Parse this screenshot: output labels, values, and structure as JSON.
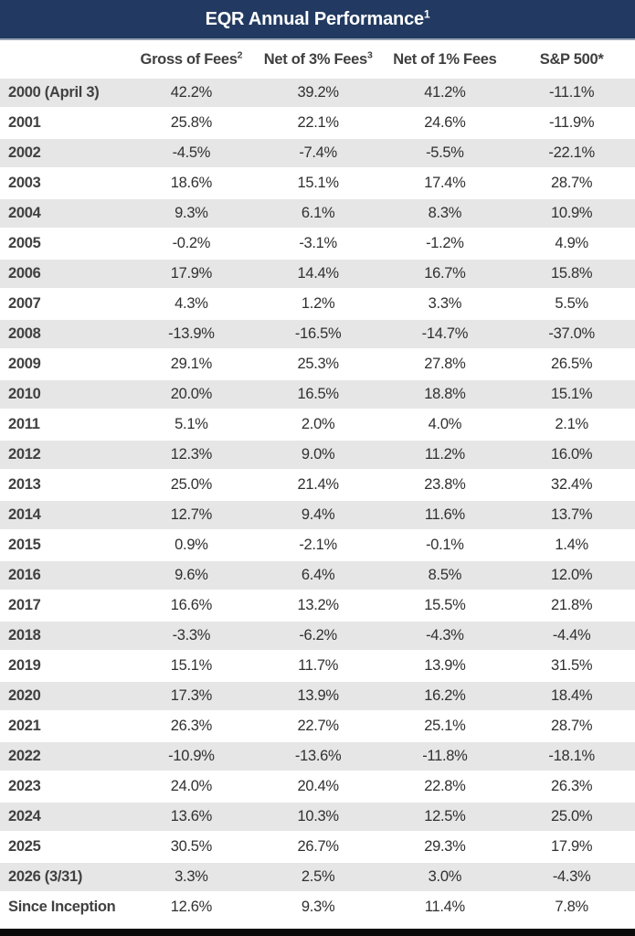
{
  "title": {
    "text": "EQR Annual Performance",
    "superscript": "1"
  },
  "colors": {
    "title_bar_bg": "#223a61",
    "title_text": "#ffffff",
    "row_alt_bg": "#e6e6e6",
    "header_text": "#3f3f3f",
    "body_text": "#303030",
    "bottom_bar": "#0a0a0a"
  },
  "chart_data": {
    "type": "table",
    "title": "EQR Annual Performance",
    "title_superscript": "1",
    "columns": [
      "",
      "Gross of Fees",
      "Net of 3% Fees",
      "Net of 1% Fees",
      "S&P 500*"
    ],
    "column_superscripts": [
      "",
      "2",
      "3",
      "",
      ""
    ],
    "rows": [
      {
        "label": "2000 (April 3)",
        "values": [
          "42.2%",
          "39.2%",
          "41.2%",
          "-11.1%"
        ]
      },
      {
        "label": "2001",
        "values": [
          "25.8%",
          "22.1%",
          "24.6%",
          "-11.9%"
        ]
      },
      {
        "label": "2002",
        "values": [
          "-4.5%",
          "-7.4%",
          "-5.5%",
          "-22.1%"
        ]
      },
      {
        "label": "2003",
        "values": [
          "18.6%",
          "15.1%",
          "17.4%",
          "28.7%"
        ]
      },
      {
        "label": "2004",
        "values": [
          "9.3%",
          "6.1%",
          "8.3%",
          "10.9%"
        ]
      },
      {
        "label": "2005",
        "values": [
          "-0.2%",
          "-3.1%",
          "-1.2%",
          "4.9%"
        ]
      },
      {
        "label": "2006",
        "values": [
          "17.9%",
          "14.4%",
          "16.7%",
          "15.8%"
        ]
      },
      {
        "label": "2007",
        "values": [
          "4.3%",
          "1.2%",
          "3.3%",
          "5.5%"
        ]
      },
      {
        "label": "2008",
        "values": [
          "-13.9%",
          "-16.5%",
          "-14.7%",
          "-37.0%"
        ]
      },
      {
        "label": "2009",
        "values": [
          "29.1%",
          "25.3%",
          "27.8%",
          "26.5%"
        ]
      },
      {
        "label": "2010",
        "values": [
          "20.0%",
          "16.5%",
          "18.8%",
          "15.1%"
        ]
      },
      {
        "label": "2011",
        "values": [
          "5.1%",
          "2.0%",
          "4.0%",
          "2.1%"
        ]
      },
      {
        "label": "2012",
        "values": [
          "12.3%",
          "9.0%",
          "11.2%",
          "16.0%"
        ]
      },
      {
        "label": "2013",
        "values": [
          "25.0%",
          "21.4%",
          "23.8%",
          "32.4%"
        ]
      },
      {
        "label": "2014",
        "values": [
          "12.7%",
          "9.4%",
          "11.6%",
          "13.7%"
        ]
      },
      {
        "label": "2015",
        "values": [
          "0.9%",
          "-2.1%",
          "-0.1%",
          "1.4%"
        ]
      },
      {
        "label": "2016",
        "values": [
          "9.6%",
          "6.4%",
          "8.5%",
          "12.0%"
        ]
      },
      {
        "label": "2017",
        "values": [
          "16.6%",
          "13.2%",
          "15.5%",
          "21.8%"
        ]
      },
      {
        "label": "2018",
        "values": [
          "-3.3%",
          "-6.2%",
          "-4.3%",
          "-4.4%"
        ]
      },
      {
        "label": "2019",
        "values": [
          "15.1%",
          "11.7%",
          "13.9%",
          "31.5%"
        ]
      },
      {
        "label": "2020",
        "values": [
          "17.3%",
          "13.9%",
          "16.2%",
          "18.4%"
        ]
      },
      {
        "label": "2021",
        "values": [
          "26.3%",
          "22.7%",
          "25.1%",
          "28.7%"
        ]
      },
      {
        "label": "2022",
        "values": [
          "-10.9%",
          "-13.6%",
          "-11.8%",
          "-18.1%"
        ]
      },
      {
        "label": "2023",
        "values": [
          "24.0%",
          "20.4%",
          "22.8%",
          "26.3%"
        ]
      },
      {
        "label": "2024",
        "values": [
          "13.6%",
          "10.3%",
          "12.5%",
          "25.0%"
        ]
      },
      {
        "label": "2025",
        "values": [
          "30.5%",
          "26.7%",
          "29.3%",
          "17.9%"
        ]
      },
      {
        "label": "2026 (3/31)",
        "values": [
          "3.3%",
          "2.5%",
          "3.0%",
          "-4.3%"
        ]
      },
      {
        "label": "Since Inception",
        "values": [
          "12.6%",
          "9.3%",
          "11.4%",
          "7.8%"
        ]
      }
    ]
  }
}
